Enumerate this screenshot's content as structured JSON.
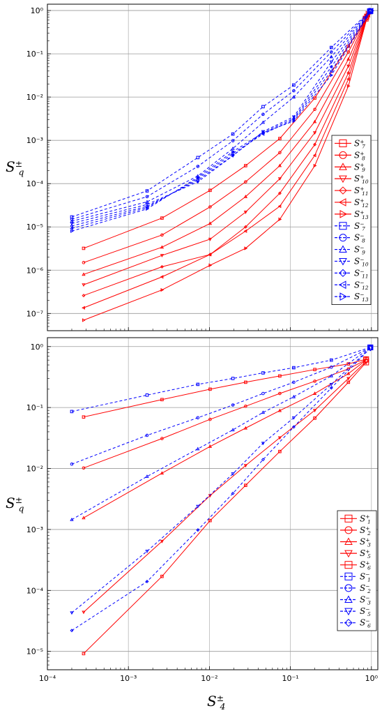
{
  "chart_data": [
    {
      "type": "line",
      "panel": "top",
      "xscale": "log",
      "yscale": "log",
      "xlim": [
        0.0001,
        1.2
      ],
      "ylim": [
        4e-08,
        1.4
      ],
      "ylabel_base": "S",
      "ylabel_sub": "q",
      "ylabel_sup": "±",
      "grid": true,
      "legend_position": "right",
      "colors": {
        "plus": "#ff0000",
        "minus": "#0000ff"
      },
      "series": [
        {
          "name_base": "S",
          "name_sub": "7",
          "name_sup": "+",
          "marker": "square",
          "dash": false,
          "x": [
            0.00028,
            0.0026,
            0.0102,
            0.028,
            0.074,
            0.2,
            0.52,
            0.85
          ],
          "y": [
            3.2e-06,
            1.6e-05,
            7e-05,
            0.00026,
            0.0011,
            0.0095,
            0.15,
            0.65
          ]
        },
        {
          "name_base": "S",
          "name_sub": "8",
          "name_sup": "+",
          "marker": "circle",
          "dash": false,
          "x": [
            0.00028,
            0.0026,
            0.0102,
            0.028,
            0.074,
            0.2,
            0.52,
            0.86
          ],
          "y": [
            1.5e-06,
            6.5e-06,
            2.9e-05,
            0.00011,
            0.00052,
            0.0052,
            0.11,
            0.68
          ]
        },
        {
          "name_base": "S",
          "name_sub": "9",
          "name_sup": "+",
          "marker": "triangle-up",
          "dash": false,
          "x": [
            0.00028,
            0.0026,
            0.0102,
            0.028,
            0.074,
            0.2,
            0.52,
            0.87
          ],
          "y": [
            8e-07,
            3.4e-06,
            1.2e-05,
            5e-05,
            0.00026,
            0.0027,
            0.075,
            0.71
          ]
        },
        {
          "name_base": "S",
          "name_sub": "10",
          "name_sup": "+",
          "marker": "triangle-down",
          "dash": false,
          "x": [
            0.00028,
            0.0026,
            0.0102,
            0.028,
            0.074,
            0.2,
            0.52,
            0.88
          ],
          "y": [
            4.6e-07,
            2.2e-06,
            5.2e-06,
            2.2e-05,
            0.00013,
            0.0015,
            0.052,
            0.74
          ]
        },
        {
          "name_base": "S",
          "name_sub": "11",
          "name_sup": "+",
          "marker": "diamond",
          "dash": false,
          "x": [
            0.00028,
            0.0026,
            0.0102,
            0.028,
            0.074,
            0.2,
            0.52,
            0.89
          ],
          "y": [
            2.6e-07,
            1.2e-06,
            2.3e-06,
            1e-05,
            6e-05,
            0.0008,
            0.036,
            0.77
          ]
        },
        {
          "name_base": "S",
          "name_sub": "12",
          "name_sup": "+",
          "marker": "triangle-left",
          "dash": false,
          "x": [
            0.00028,
            0.0026,
            0.0102,
            0.028,
            0.074,
            0.2,
            0.52,
            0.9
          ],
          "y": [
            1.35e-07,
            7e-07,
            2.3e-06,
            8e-06,
            3e-05,
            0.00045,
            0.026,
            0.8
          ]
        },
        {
          "name_base": "S",
          "name_sub": "13",
          "name_sup": "+",
          "marker": "triangle-right",
          "dash": false,
          "x": [
            0.00028,
            0.0026,
            0.0102,
            0.028,
            0.074,
            0.2,
            0.52,
            0.91
          ],
          "y": [
            7e-08,
            3.5e-07,
            1.3e-06,
            3.2e-06,
            1.5e-05,
            0.00026,
            0.018,
            0.83
          ]
        },
        {
          "name_base": "S",
          "name_sub": "7",
          "name_sup": "−",
          "marker": "square",
          "dash": true,
          "x": [
            0.0002,
            0.0017,
            0.0072,
            0.0195,
            0.046,
            0.11,
            0.32,
            0.96
          ],
          "y": [
            1.7e-05,
            6.8e-05,
            0.0004,
            0.0014,
            0.006,
            0.019,
            0.14,
            0.96
          ]
        },
        {
          "name_base": "S",
          "name_sub": "8",
          "name_sup": "−",
          "marker": "circle",
          "dash": true,
          "x": [
            0.0002,
            0.0017,
            0.0072,
            0.0195,
            0.046,
            0.11,
            0.32,
            0.965
          ],
          "y": [
            1.5e-05,
            5e-05,
            0.00025,
            0.00098,
            0.004,
            0.014,
            0.11,
            0.96
          ]
        },
        {
          "name_base": "S",
          "name_sub": "9",
          "name_sup": "−",
          "marker": "triangle-up",
          "dash": true,
          "x": [
            0.0002,
            0.0017,
            0.0072,
            0.0195,
            0.046,
            0.11,
            0.32,
            0.97
          ],
          "y": [
            1.35e-05,
            3.8e-05,
            0.00015,
            0.00065,
            0.0026,
            0.01,
            0.085,
            0.97
          ]
        },
        {
          "name_base": "S",
          "name_sub": "10",
          "name_sup": "−",
          "marker": "triangle-down",
          "dash": true,
          "x": [
            0.0002,
            0.0017,
            0.0072,
            0.0195,
            0.046,
            0.11,
            0.32,
            0.975
          ],
          "y": [
            1.2e-05,
            3.3e-05,
            0.00011,
            0.00044,
            0.0016,
            0.0035,
            0.065,
            0.97
          ]
        },
        {
          "name_base": "S",
          "name_sub": "11",
          "name_sup": "−",
          "marker": "diamond",
          "dash": true,
          "x": [
            0.0002,
            0.0017,
            0.0072,
            0.0195,
            0.046,
            0.11,
            0.32,
            0.98
          ],
          "y": [
            1.05e-05,
            3e-05,
            0.00012,
            0.00045,
            0.0015,
            0.0032,
            0.05,
            0.98
          ]
        },
        {
          "name_base": "S",
          "name_sub": "12",
          "name_sup": "−",
          "marker": "triangle-left",
          "dash": true,
          "x": [
            0.0002,
            0.0017,
            0.0072,
            0.0195,
            0.046,
            0.11,
            0.32,
            0.985
          ],
          "y": [
            9.2e-06,
            2.8e-05,
            0.00013,
            0.0005,
            0.0014,
            0.003,
            0.04,
            0.98
          ]
        },
        {
          "name_base": "S",
          "name_sub": "13",
          "name_sup": "−",
          "marker": "triangle-right",
          "dash": true,
          "x": [
            0.0002,
            0.0017,
            0.0072,
            0.0195,
            0.046,
            0.11,
            0.32,
            0.99
          ],
          "y": [
            8e-06,
            2.6e-05,
            0.00014,
            0.00055,
            0.0015,
            0.0028,
            0.032,
            0.99
          ]
        }
      ]
    },
    {
      "type": "line",
      "panel": "bottom",
      "xscale": "log",
      "yscale": "log",
      "xlim": [
        0.0001,
        1.2
      ],
      "ylim": [
        5e-06,
        1.4
      ],
      "xlabel_base": "S",
      "xlabel_sub": "4",
      "xlabel_sup": "±",
      "ylabel_base": "S",
      "ylabel_sub": "q",
      "ylabel_sup": "±",
      "grid": true,
      "legend_position": "right",
      "colors": {
        "plus": "#ff0000",
        "minus": "#0000ff"
      },
      "series": [
        {
          "name_base": "S",
          "name_sub": "1",
          "name_sup": "+",
          "marker": "square",
          "dash": false,
          "x": [
            0.00028,
            0.0026,
            0.0102,
            0.028,
            0.074,
            0.2,
            0.52,
            0.86
          ],
          "y": [
            0.07,
            0.135,
            0.2,
            0.26,
            0.33,
            0.42,
            0.52,
            0.62
          ]
        },
        {
          "name_base": "S",
          "name_sub": "2",
          "name_sup": "+",
          "marker": "circle",
          "dash": false,
          "x": [
            0.00028,
            0.0026,
            0.0102,
            0.028,
            0.074,
            0.2,
            0.52,
            0.86
          ],
          "y": [
            0.0102,
            0.031,
            0.064,
            0.105,
            0.17,
            0.27,
            0.43,
            0.61
          ]
        },
        {
          "name_base": "S",
          "name_sub": "3",
          "name_sup": "+",
          "marker": "triangle-up",
          "dash": false,
          "x": [
            0.00028,
            0.0026,
            0.0102,
            0.028,
            0.074,
            0.2,
            0.52,
            0.86
          ],
          "y": [
            0.00155,
            0.0084,
            0.023,
            0.046,
            0.089,
            0.17,
            0.36,
            0.6
          ]
        },
        {
          "name_base": "S",
          "name_sub": "5",
          "name_sup": "+",
          "marker": "triangle-down",
          "dash": false,
          "x": [
            0.00028,
            0.0026,
            0.0102,
            0.028,
            0.074,
            0.2,
            0.52,
            0.86
          ],
          "y": [
            4.4e-05,
            0.00064,
            0.0036,
            0.0112,
            0.032,
            0.09,
            0.3,
            0.57
          ]
        },
        {
          "name_base": "S",
          "name_sub": "6",
          "name_sup": "+",
          "marker": "square",
          "dash": false,
          "x": [
            0.00028,
            0.0026,
            0.0102,
            0.028,
            0.074,
            0.2,
            0.52,
            0.86
          ],
          "y": [
            9.2e-06,
            0.00017,
            0.0014,
            0.0053,
            0.019,
            0.067,
            0.26,
            0.55
          ]
        },
        {
          "name_base": "S",
          "name_sub": "1",
          "name_sup": "−",
          "marker": "square",
          "dash": true,
          "x": [
            0.0002,
            0.0017,
            0.0072,
            0.0195,
            0.046,
            0.11,
            0.32,
            0.97
          ],
          "y": [
            0.086,
            0.16,
            0.24,
            0.3,
            0.37,
            0.45,
            0.6,
            0.97
          ]
        },
        {
          "name_base": "S",
          "name_sub": "2",
          "name_sup": "−",
          "marker": "circle",
          "dash": true,
          "x": [
            0.0002,
            0.0017,
            0.0072,
            0.0195,
            0.046,
            0.11,
            0.32,
            0.97
          ],
          "y": [
            0.0118,
            0.035,
            0.068,
            0.11,
            0.17,
            0.26,
            0.46,
            0.96
          ]
        },
        {
          "name_base": "S",
          "name_sub": "3",
          "name_sup": "−",
          "marker": "triangle-up",
          "dash": true,
          "x": [
            0.0002,
            0.0017,
            0.0072,
            0.0195,
            0.046,
            0.11,
            0.32,
            0.97
          ],
          "y": [
            0.00145,
            0.0074,
            0.021,
            0.043,
            0.083,
            0.15,
            0.33,
            0.96
          ]
        },
        {
          "name_base": "S",
          "name_sub": "5",
          "name_sup": "−",
          "marker": "triangle-down",
          "dash": true,
          "x": [
            0.0002,
            0.0017,
            0.0072,
            0.0195,
            0.046,
            0.11,
            0.32,
            0.97
          ],
          "y": [
            4.3e-05,
            0.00044,
            0.0024,
            0.0082,
            0.026,
            0.068,
            0.24,
            0.95
          ]
        },
        {
          "name_base": "S",
          "name_sub": "6",
          "name_sup": "−",
          "marker": "diamond",
          "dash": true,
          "x": [
            0.0002,
            0.0017,
            0.0072,
            0.0195,
            0.046,
            0.11,
            0.32,
            0.97
          ],
          "y": [
            2.2e-05,
            0.00014,
            0.00098,
            0.0039,
            0.014,
            0.048,
            0.21,
            0.94
          ]
        }
      ]
    }
  ]
}
